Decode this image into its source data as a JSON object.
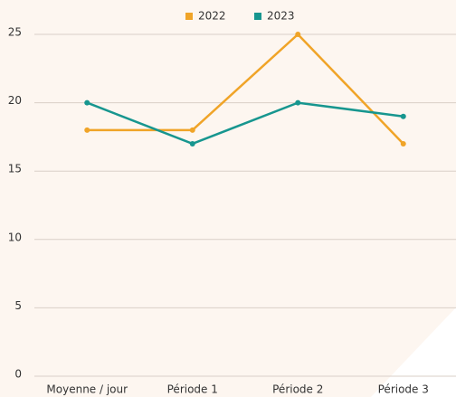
{
  "chart_data": {
    "type": "line",
    "categories": [
      "Moyenne / jour",
      "Période 1",
      "Période 2",
      "Période 3"
    ],
    "series": [
      {
        "name": "2022",
        "color": "#f0a428",
        "values": [
          18,
          18,
          25,
          17
        ]
      },
      {
        "name": "2023",
        "color": "#17968f",
        "values": [
          20,
          17,
          20,
          19
        ]
      }
    ],
    "ylim": [
      0,
      25
    ],
    "yticks": [
      0,
      5,
      10,
      15,
      20,
      25
    ],
    "grid": true,
    "legend": "top"
  }
}
